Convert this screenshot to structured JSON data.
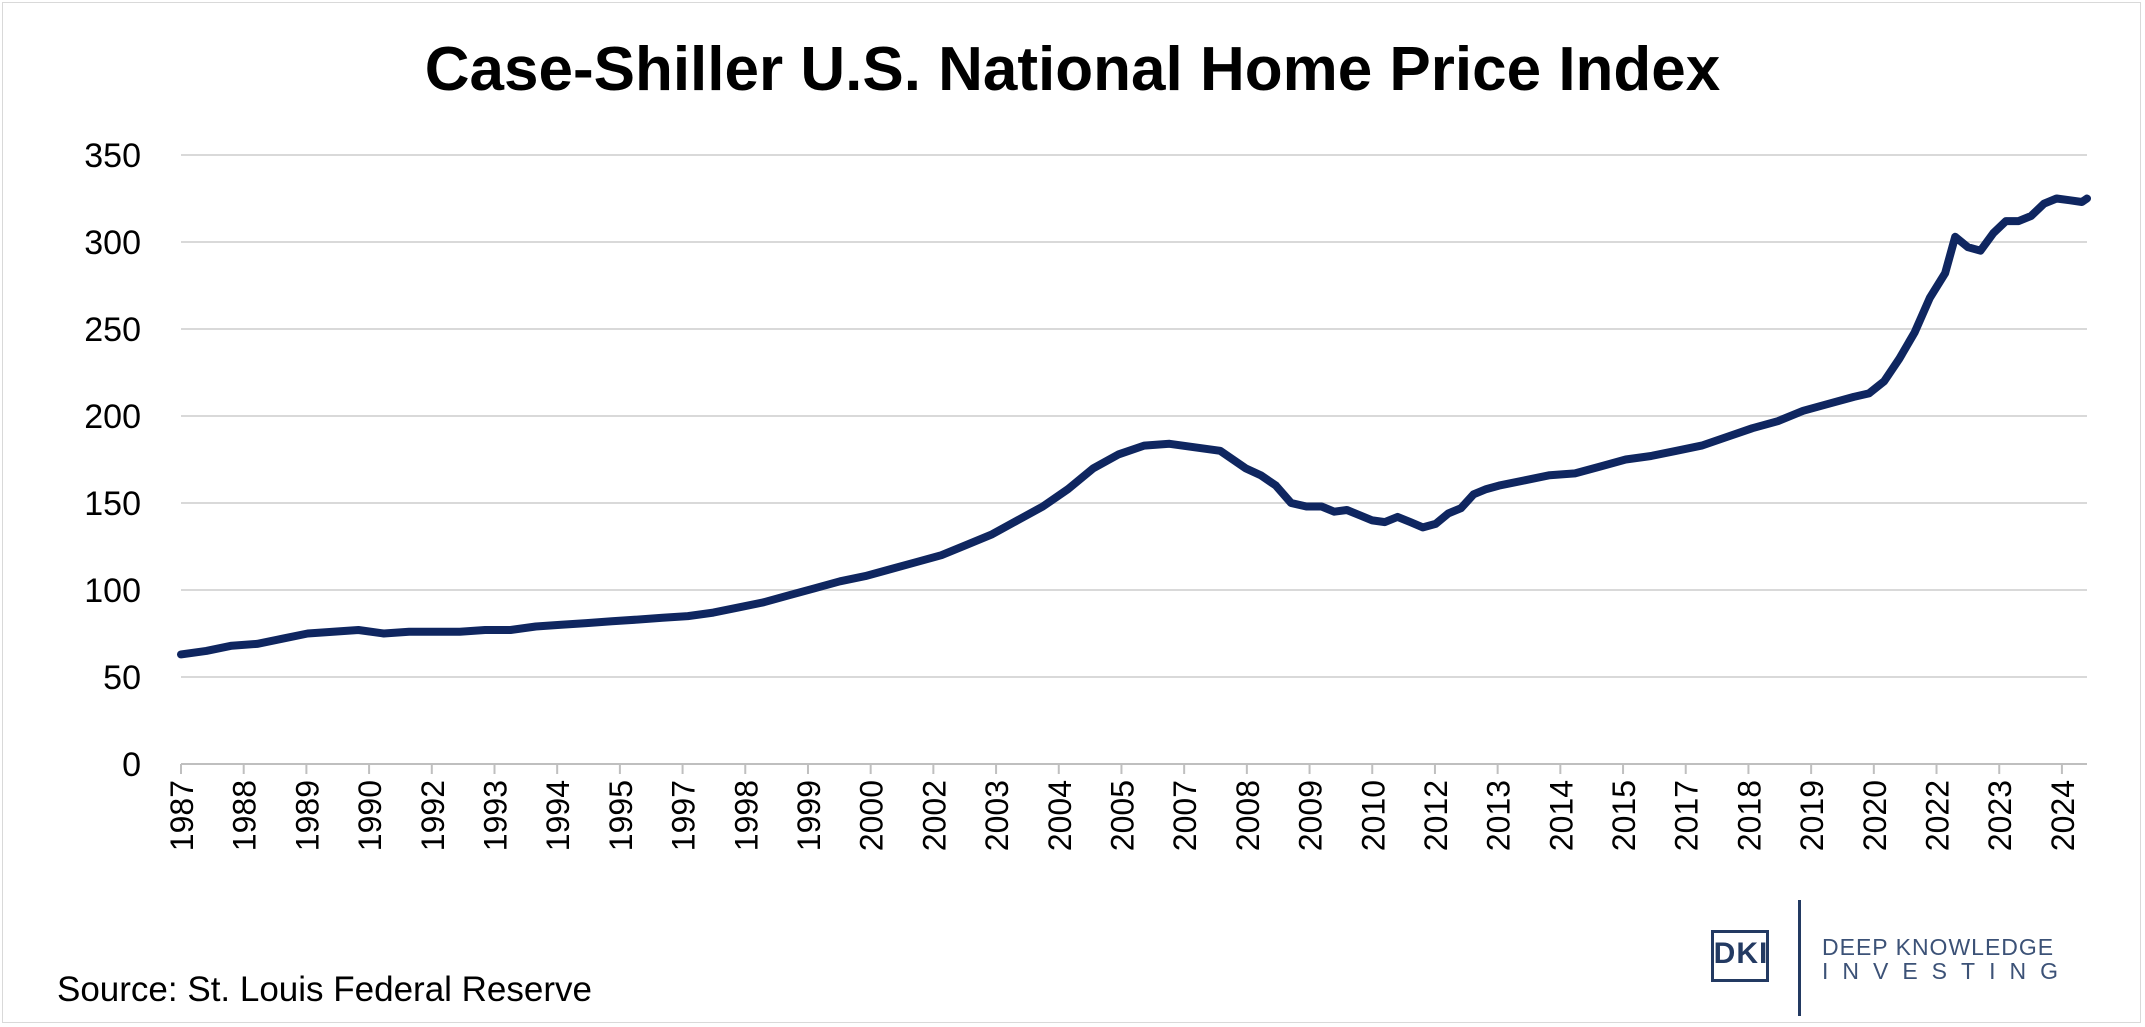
{
  "title": "Case-Shiller U.S. National Home Price Index",
  "source": "Source: St. Louis Federal Reserve",
  "logo": {
    "mark": "DKI",
    "line1": "DEEP KNOWLEDGE",
    "line2": "INVESTING"
  },
  "colors": {
    "series": "#0f2660",
    "grid": "#d9d9d9",
    "logo": "#233a62"
  },
  "chart_data": {
    "type": "line",
    "title": "Case-Shiller U.S. National Home Price Index",
    "xlabel": "",
    "ylabel": "",
    "ylim": [
      0,
      350
    ],
    "yticks": [
      0,
      50,
      100,
      150,
      200,
      250,
      300,
      350
    ],
    "xlim": [
      1987.0,
      2024.6
    ],
    "xtick_labels": [
      "1987",
      "1988",
      "1989",
      "1990",
      "1992",
      "1993",
      "1994",
      "1995",
      "1997",
      "1998",
      "1999",
      "2000",
      "2002",
      "2003",
      "2004",
      "2005",
      "2007",
      "2008",
      "2009",
      "2010",
      "2012",
      "2013",
      "2014",
      "2015",
      "2017",
      "2018",
      "2019",
      "2020",
      "2022",
      "2023",
      "2024"
    ],
    "grid": "horizontal",
    "legend": "none",
    "series": [
      {
        "x": [
          1987.0,
          1987.5,
          1988.0,
          1988.5,
          1989.0,
          1989.5,
          1990.0,
          1990.5,
          1991.0,
          1991.5,
          1992.0,
          1992.5,
          1993.0,
          1993.5,
          1994.0,
          1994.5,
          1995.0,
          1995.5,
          1996.0,
          1996.5,
          1997.0,
          1997.5,
          1998.0,
          1998.5,
          1999.0,
          1999.5,
          2000.0,
          2000.5,
          2001.0,
          2001.5,
          2002.0,
          2002.5,
          2003.0,
          2003.5,
          2004.0,
          2004.5,
          2005.0,
          2005.5,
          2006.0,
          2006.5,
          2007.0,
          2007.5,
          2008.0,
          2008.3,
          2008.6,
          2008.9,
          2009.2,
          2009.5,
          2009.75,
          2010.0,
          2010.25,
          2010.5,
          2010.75,
          2011.0,
          2011.25,
          2011.5,
          2011.75,
          2012.0,
          2012.25,
          2012.5,
          2012.75,
          2013.0,
          2013.5,
          2014.0,
          2014.5,
          2015.0,
          2015.5,
          2016.0,
          2016.5,
          2017.0,
          2017.5,
          2018.0,
          2018.5,
          2019.0,
          2019.5,
          2020.0,
          2020.3,
          2020.6,
          2020.9,
          2021.2,
          2021.5,
          2021.8,
          2022.0,
          2022.25,
          2022.5,
          2022.75,
          2023.0,
          2023.25,
          2023.5,
          2023.75,
          2024.0,
          2024.25,
          2024.5,
          2024.6
        ],
        "y": [
          63,
          65,
          68,
          69,
          72,
          75,
          76,
          77,
          75,
          76,
          76,
          76,
          77,
          77,
          79,
          80,
          81,
          82,
          83,
          84,
          85,
          87,
          90,
          93,
          97,
          101,
          105,
          108,
          112,
          116,
          120,
          126,
          132,
          140,
          148,
          158,
          170,
          178,
          183,
          184,
          182,
          180,
          170,
          166,
          160,
          150,
          148,
          148,
          145,
          146,
          143,
          140,
          139,
          142,
          139,
          136,
          138,
          144,
          147,
          155,
          158,
          160,
          163,
          166,
          167,
          171,
          175,
          177,
          180,
          183,
          188,
          193,
          197,
          203,
          207,
          211,
          213,
          220,
          233,
          248,
          268,
          282,
          303,
          297,
          295,
          305,
          312,
          312,
          315,
          322,
          325,
          324,
          323,
          325
        ]
      }
    ]
  }
}
